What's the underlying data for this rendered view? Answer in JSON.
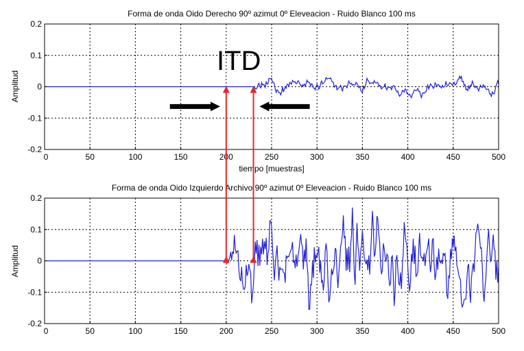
{
  "chart_data": [
    {
      "type": "line",
      "title": "Forma de onda Oido Derecho 90º azimut 0º Eleveacion - Ruido Blanco 100 ms",
      "xlabel": "tiempo [muestras]",
      "ylabel": "Amplitud",
      "xlim": [
        0,
        500
      ],
      "ylim": [
        -0.2,
        0.2
      ],
      "xticks": [
        0,
        50,
        100,
        150,
        200,
        250,
        300,
        350,
        400,
        450,
        500
      ],
      "yticks": [
        0.2,
        0.1,
        0,
        -0.1,
        -0.2
      ],
      "xtick_labels": [
        "0",
        "50",
        "100",
        "150",
        "200",
        "250",
        "300",
        "350",
        "400",
        "450",
        "500"
      ],
      "ytick_labels": [
        "0.2",
        "0.1",
        "0",
        "-0.1",
        "-0.2"
      ],
      "grid": true,
      "color": "#1f1fd6",
      "signal_onset": 230,
      "amplitude_range": [
        -0.035,
        0.035
      ]
    },
    {
      "type": "line",
      "title": "Forma de onda Oido Izquierdo Archivo 90º azimut 0º Eleveacion - Ruido Blanco 100 ms",
      "xlabel": "",
      "ylabel": "Amplitud",
      "xlim": [
        0,
        500
      ],
      "ylim": [
        -0.2,
        0.2
      ],
      "xticks": [
        0,
        50,
        100,
        150,
        200,
        250,
        300,
        350,
        400,
        450,
        500
      ],
      "yticks": [
        0.2,
        0.1,
        0,
        -0.1,
        -0.2
      ],
      "xtick_labels": [
        "0",
        "50",
        "100",
        "150",
        "200",
        "250",
        "300",
        "350",
        "400",
        "450",
        "500"
      ],
      "ytick_labels": [
        "0.2",
        "0.1",
        "0",
        "-0.1",
        "-0.2"
      ],
      "grid": true,
      "color": "#1f1fd6",
      "signal_onset": 200,
      "amplitude_range": [
        -0.17,
        0.16
      ]
    }
  ],
  "annotations": {
    "label": "ITD",
    "onset_left_ear": 200,
    "onset_right_ear": 230,
    "arrow_color": "#e8262a",
    "pointer_color": "#000000"
  }
}
